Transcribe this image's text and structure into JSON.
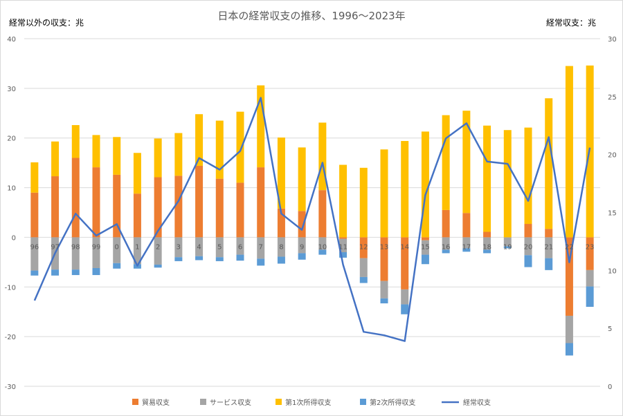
{
  "chart_data": {
    "type": "bar",
    "title": "日本の経常収支の推移、1996〜2023年",
    "left_axis_label": "経常以外の収支：兆",
    "right_axis_label": "経常収支：兆",
    "left_ylim": [
      -30,
      40
    ],
    "left_ticks": [
      "-30",
      "-20",
      "-10",
      "0",
      "10",
      "20",
      "30",
      "40"
    ],
    "right_ylim": [
      0,
      30
    ],
    "right_ticks": [
      "0",
      "5",
      "10",
      "15",
      "20",
      "25",
      "30"
    ],
    "categories": [
      "96",
      "97",
      "98",
      "99",
      "0",
      "1",
      "2",
      "3",
      "4",
      "5",
      "6",
      "7",
      "8",
      "9",
      "10",
      "11",
      "12",
      "13",
      "14",
      "15",
      "16",
      "17",
      "18",
      "19",
      "20",
      "21",
      "22",
      "23"
    ],
    "stacked": true,
    "grid": true,
    "legend_position": "bottom",
    "series": [
      {
        "name": "貿易収支",
        "color": "#ed7d31",
        "axis": "left",
        "values": [
          9.0,
          12.3,
          16.0,
          14.1,
          12.6,
          8.8,
          12.1,
          12.4,
          14.4,
          11.8,
          11.0,
          14.1,
          5.8,
          5.3,
          9.5,
          -0.3,
          -4.2,
          -8.8,
          -10.5,
          -0.6,
          5.5,
          4.9,
          1.1,
          0.0,
          2.7,
          1.7,
          -15.8,
          -6.6
        ]
      },
      {
        "name": "サービス収支",
        "color": "#a5a5a5",
        "axis": "left",
        "values": [
          -6.7,
          -6.5,
          -6.5,
          -6.2,
          -5.2,
          -5.4,
          -5.5,
          -4.0,
          -3.8,
          -4.0,
          -3.5,
          -4.3,
          -3.9,
          -3.2,
          -2.5,
          -2.7,
          -3.8,
          -3.5,
          -3.0,
          -2.9,
          -2.5,
          -2.2,
          -2.5,
          -1.8,
          -3.6,
          -4.2,
          -5.5,
          -3.3
        ]
      },
      {
        "name": "第1次所得収支",
        "color": "#ffc000",
        "axis": "left",
        "values": [
          6.1,
          7.0,
          6.6,
          6.5,
          7.6,
          8.2,
          7.8,
          8.6,
          10.4,
          11.7,
          14.3,
          16.5,
          14.3,
          12.8,
          13.6,
          14.6,
          14.0,
          17.7,
          19.4,
          21.3,
          19.1,
          20.6,
          21.4,
          21.6,
          19.4,
          26.3,
          34.5,
          34.6
        ]
      },
      {
        "name": "第2次所得収支",
        "color": "#5b9bd5",
        "axis": "left",
        "values": [
          -1.0,
          -1.2,
          -1.1,
          -1.4,
          -1.1,
          -0.9,
          -0.6,
          -0.8,
          -0.8,
          -0.8,
          -1.2,
          -1.4,
          -1.4,
          -1.3,
          -1.0,
          -1.1,
          -1.2,
          -1.0,
          -2.0,
          -1.9,
          -0.7,
          -0.7,
          -0.7,
          -0.4,
          -2.4,
          -2.4,
          -2.5,
          -4.1
        ]
      },
      {
        "name": "経常収支",
        "color": "#4472c4",
        "axis": "right",
        "kind": "line",
        "values": [
          7.4,
          11.5,
          14.9,
          13.0,
          14.0,
          10.4,
          13.4,
          16.0,
          19.7,
          18.7,
          20.3,
          24.9,
          14.9,
          13.5,
          19.3,
          10.5,
          4.7,
          4.4,
          3.9,
          16.5,
          21.4,
          22.7,
          19.4,
          19.2,
          16.0,
          21.5,
          10.7,
          20.6
        ]
      }
    ]
  }
}
